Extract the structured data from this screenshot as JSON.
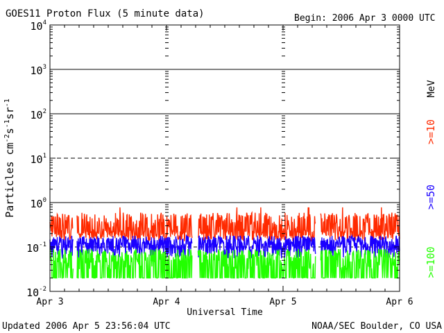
{
  "chart_data": {
    "type": "line",
    "title": "GOES11 Proton Flux (5 minute data)",
    "begin": "Begin: 2006 Apr 3 0000 UTC",
    "xlabel": "Universal Time",
    "ylabel_parts": [
      "Particles cm",
      "-2",
      "s",
      "-1",
      "sr",
      "-1"
    ],
    "x_ticks": [
      "Apr 3",
      "Apr 4",
      "Apr 5",
      "Apr 6"
    ],
    "xlim_days": [
      0,
      3
    ],
    "y_scale": "log",
    "ylim": [
      0.01,
      10000
    ],
    "y_tick_exponents": [
      -2,
      -1,
      0,
      1,
      2,
      3,
      4
    ],
    "unit": "MeV",
    "footer_left": "Updated 2006 Apr  5 23:56:04 UTC",
    "footer_right": "NOAA/SEC Boulder, CO USA",
    "series": [
      {
        "name": ">=10",
        "color": "#ff2a00",
        "baseline": 0.18,
        "typical_range": [
          0.12,
          0.6
        ]
      },
      {
        "name": ">=50",
        "color": "#1a00ff",
        "baseline": 0.09,
        "typical_range": [
          0.05,
          0.18
        ]
      },
      {
        "name": ">=100",
        "color": "#22ff00",
        "baseline": 0.045,
        "typical_range": [
          0.02,
          0.1
        ]
      }
    ],
    "grid": "solid lines at 1e0, 1e2, 1e3; dashed at 1e1; dashed line at 1e-1"
  }
}
